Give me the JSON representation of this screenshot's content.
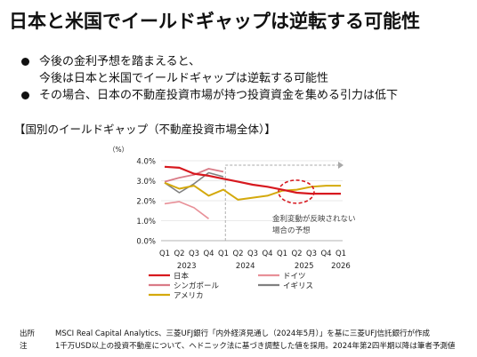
{
  "title": "日本と米国でイールドギャップは逆転する可能性",
  "bullets": [
    {
      "lines": [
        "今後の金利予想を踏まえると、",
        "今後は日本と米国でイールドギャップは逆転する可能性"
      ]
    },
    {
      "lines": [
        "その場合、日本の不動産投資市場が持つ投資資金を集める引力は低下"
      ]
    }
  ],
  "chart_heading": "【国別のイールドギャップ（不動産投資市場全体）】",
  "chart_data": {
    "type": "line",
    "unit_label": "（%）",
    "ylim": [
      0,
      4
    ],
    "yticks": [
      "0.0%",
      "1.0%",
      "2.0%",
      "3.0%",
      "4.0%"
    ],
    "quarters": [
      "Q1",
      "Q2",
      "Q3",
      "Q4",
      "Q1",
      "Q2",
      "Q3",
      "Q4",
      "Q1",
      "Q2",
      "Q3",
      "Q4",
      "Q1"
    ],
    "years": [
      {
        "label": "2023",
        "from": 0,
        "to": 3
      },
      {
        "label": "2024",
        "from": 4,
        "to": 7
      },
      {
        "label": "2025",
        "from": 8,
        "to": 11
      },
      {
        "label": "2026",
        "from": 12,
        "to": 12
      }
    ],
    "series": [
      {
        "name": "日本",
        "color": "#d7191f",
        "width": 2.2,
        "values": [
          3.7,
          3.65,
          3.35,
          3.25,
          3.1,
          2.95,
          2.8,
          2.7,
          2.55,
          2.4,
          2.35,
          2.35,
          2.35
        ]
      },
      {
        "name": "ドイツ",
        "color": "#e89098",
        "width": 1.6,
        "values": [
          1.85,
          1.95,
          1.65,
          1.1,
          null,
          null,
          null,
          null,
          null,
          null,
          null,
          null,
          null
        ]
      },
      {
        "name": "シンガポール",
        "color": "#d97b87",
        "width": 1.8,
        "values": [
          2.95,
          3.15,
          3.3,
          3.6,
          3.45,
          null,
          null,
          null,
          null,
          null,
          null,
          null,
          null
        ]
      },
      {
        "name": "イギリス",
        "color": "#808080",
        "width": 1.6,
        "values": [
          2.9,
          2.4,
          2.85,
          3.4,
          3.2,
          null,
          null,
          null,
          null,
          null,
          null,
          null,
          null
        ]
      },
      {
        "name": "アメリカ",
        "color": "#d4a90c",
        "width": 2.0,
        "values": [
          2.9,
          2.6,
          2.75,
          2.25,
          2.55,
          2.05,
          2.15,
          2.25,
          2.5,
          2.55,
          2.7,
          2.75,
          2.75
        ]
      }
    ],
    "legend": [
      {
        "name": "日本",
        "color": "#d7191f"
      },
      {
        "name": "ドイツ",
        "color": "#e89098"
      },
      {
        "name": "シンガポール",
        "color": "#d97b87"
      },
      {
        "name": "イギリス",
        "color": "#808080"
      },
      {
        "name": "アメリカ",
        "color": "#d4a90c"
      }
    ],
    "annotation": {
      "lines": [
        "金利変動が反映されない",
        "場合の予想"
      ]
    },
    "highlight_color": "#d7191f"
  },
  "footer": [
    {
      "label": "出所",
      "text": "MSCI Real Capital Analytics、三菱UFJ銀行「内外経済見通し（2024年5月）」を基に三菱UFJ信託銀行が作成"
    },
    {
      "label": "注",
      "text": "1千万USD以上の投資不動産について、ヘドニック法に基づき調整した値を採用。2024年第2四半期以降は筆者予測値"
    }
  ]
}
